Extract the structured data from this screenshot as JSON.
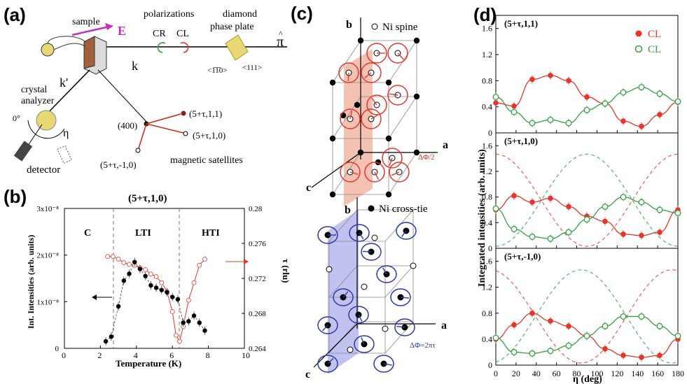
{
  "panels": {
    "a": {
      "label": "(a)",
      "sample": "sample",
      "efield": "E",
      "polarizations": "polarizations",
      "cr": "CR",
      "cl": "CL",
      "diamond_line1": "diamond",
      "diamond_line2": "phase plate",
      "dir_110": "<1̅1̅0>",
      "dir_111": "<111>",
      "pi": "π",
      "k": "k",
      "kprime": "k'",
      "crystal_line1": "crystal",
      "crystal_line2": "analyzer",
      "zero_deg": "0°",
      "eta": "η",
      "detector": "detector",
      "refl_400": "(400)",
      "sat_511": "(5+τ,1,1)",
      "sat_510": "(5+τ,1,0)",
      "sat_5m10": "(5+τ,-1,0)",
      "magnetic_satellites": "magnetic satellites"
    },
    "b": {
      "label": "(b)",
      "title": "(5+τ,1,0)",
      "phase_c": "C",
      "phase_lti": "LTI",
      "phase_hti": "HTI",
      "xlabel": "Temperature (K)",
      "ylabel_left": "Int. Intensities (arb. units)",
      "ylabel_right": "τ (rlu)",
      "x_ticks": [
        "0",
        "2",
        "4",
        "6",
        "8",
        "10"
      ],
      "y_left_ticks": [
        "0",
        "1x10⁻⁸",
        "2x10⁻⁸",
        "3x10⁻⁸"
      ],
      "y_right_ticks": [
        "0.264",
        "0.268",
        "0.272",
        "0.276",
        "0.28"
      ]
    },
    "c": {
      "label": "(c)",
      "legend_top": "Ni spine",
      "legend_bottom": "Ni cross-tie",
      "axis_a": "a",
      "axis_b": "b",
      "axis_c": "c",
      "phase_top": "ΔΦ/2",
      "phase_bottom": "ΔΦ=2πτ"
    },
    "d": {
      "label": "(d)",
      "legend_cl": "CL",
      "legend_cr": "CL",
      "ylabel": "Integrated intensities (arb. units)",
      "xlabel": "η (deg)",
      "x_ticks": [
        "0",
        "20",
        "40",
        "60",
        "80",
        "100",
        "120",
        "140",
        "160",
        "180"
      ],
      "y_ticks": [
        "0",
        "0.4",
        "0.8",
        "1.2",
        "1.6"
      ],
      "subplot_titles": [
        "(5+τ,1,1)",
        "(5+τ,1,0)",
        "(5+τ,-1,0)"
      ]
    }
  },
  "colors": {
    "red": "#e8352a",
    "green": "#35a044",
    "blue": "#2a3aa8",
    "magenta": "#c030c0",
    "pink_plane": "#f2b7a6",
    "blue_plane": "#b7b7ee"
  },
  "chart_data": [
    {
      "type": "scatter",
      "panel": "b",
      "title": "(5+τ,1,0)",
      "xlabel": "Temperature (K)",
      "ylabel": "Int. Intensities (arb. units)",
      "xlim": [
        0,
        10
      ],
      "ylim": [
        0,
        3e-08
      ],
      "y2label": "τ (rlu)",
      "y2lim": [
        0.264,
        0.28
      ],
      "series": [
        {
          "axis": "left",
          "x": [
            2.3,
            2.6,
            3.0,
            3.3,
            3.6,
            3.9,
            4.2,
            4.5,
            4.8,
            5.1,
            5.4,
            5.7,
            6.0,
            6.3,
            6.6,
            6.9,
            7.2,
            7.5,
            7.8
          ],
          "y": [
            1.5e-09,
            2.5e-09,
            9e-09,
            1.45e-08,
            1.6e-08,
            1.85e-08,
            1.7e-08,
            1.55e-08,
            1.35e-08,
            1.3e-08,
            1.25e-08,
            1.2e-08,
            1.1e-08,
            1.05e-08,
            5.5e-09,
            5.8e-09,
            7e-09,
            5.5e-09,
            3.8e-09
          ]
        },
        {
          "axis": "right",
          "x": [
            2.4,
            2.7,
            3.0,
            3.3,
            3.6,
            3.9,
            4.2,
            4.5,
            4.8,
            5.1,
            5.4,
            5.7,
            6.0,
            6.2,
            6.4,
            6.6,
            6.9,
            7.2,
            7.5,
            7.8
          ],
          "y": [
            0.2745,
            0.2745,
            0.2742,
            0.2738,
            0.2736,
            0.2735,
            0.2732,
            0.273,
            0.2725,
            0.2722,
            0.2715,
            0.2705,
            0.2682,
            0.2655,
            0.2648,
            0.2665,
            0.2695,
            0.2715,
            0.2735,
            0.2742
          ]
        }
      ]
    },
    {
      "type": "scatter",
      "panel": "d",
      "xlabel": "η (deg)",
      "ylabel": "Integrated intensities (arb. units)",
      "xlim": [
        0,
        180
      ],
      "ylim": [
        0,
        1.8
      ],
      "subplots": [
        {
          "title": "(5+τ,1,1)",
          "series": [
            {
              "name": "CL",
              "x": [
                0,
                18,
                36,
                54,
                72,
                90,
                108,
                126,
                144,
                162,
                180
              ],
              "y": [
                0.46,
                0.41,
                0.82,
                0.88,
                0.8,
                0.55,
                0.45,
                0.18,
                0.1,
                0.28,
                0.47
              ]
            },
            {
              "name": "CL",
              "x": [
                0,
                18,
                36,
                54,
                72,
                90,
                108,
                126,
                144,
                162,
                180
              ],
              "y": [
                0.55,
                0.32,
                0.15,
                0.2,
                0.15,
                0.35,
                0.45,
                0.62,
                0.7,
                0.6,
                0.48
              ]
            }
          ]
        },
        {
          "title": "(5+τ,1,0)",
          "series": [
            {
              "name": "CL",
              "x": [
                0,
                18,
                36,
                54,
                72,
                90,
                108,
                126,
                144,
                162,
                180
              ],
              "y": [
                0.6,
                0.82,
                0.72,
                0.78,
                0.65,
                0.5,
                0.42,
                0.22,
                0.2,
                0.25,
                0.6
              ]
            },
            {
              "name": "CL",
              "x": [
                0,
                18,
                36,
                54,
                72,
                90,
                108,
                126,
                144,
                162,
                180
              ],
              "y": [
                0.62,
                0.3,
                0.18,
                0.15,
                0.25,
                0.45,
                0.65,
                0.8,
                0.72,
                0.6,
                0.55
              ]
            }
          ]
        },
        {
          "title": "(5+τ,-1,0)",
          "series": [
            {
              "name": "CL",
              "x": [
                0,
                18,
                36,
                54,
                72,
                90,
                108,
                126,
                144,
                162,
                180
              ],
              "y": [
                0.4,
                0.62,
                0.8,
                0.68,
                0.6,
                0.45,
                0.25,
                0.15,
                0.12,
                0.15,
                0.4
              ]
            },
            {
              "name": "CL",
              "x": [
                0,
                18,
                36,
                54,
                72,
                90,
                108,
                126,
                144,
                162,
                180
              ],
              "y": [
                0.42,
                0.2,
                0.18,
                0.22,
                0.3,
                0.45,
                0.6,
                0.75,
                0.75,
                0.6,
                0.45
              ]
            }
          ]
        }
      ]
    }
  ]
}
